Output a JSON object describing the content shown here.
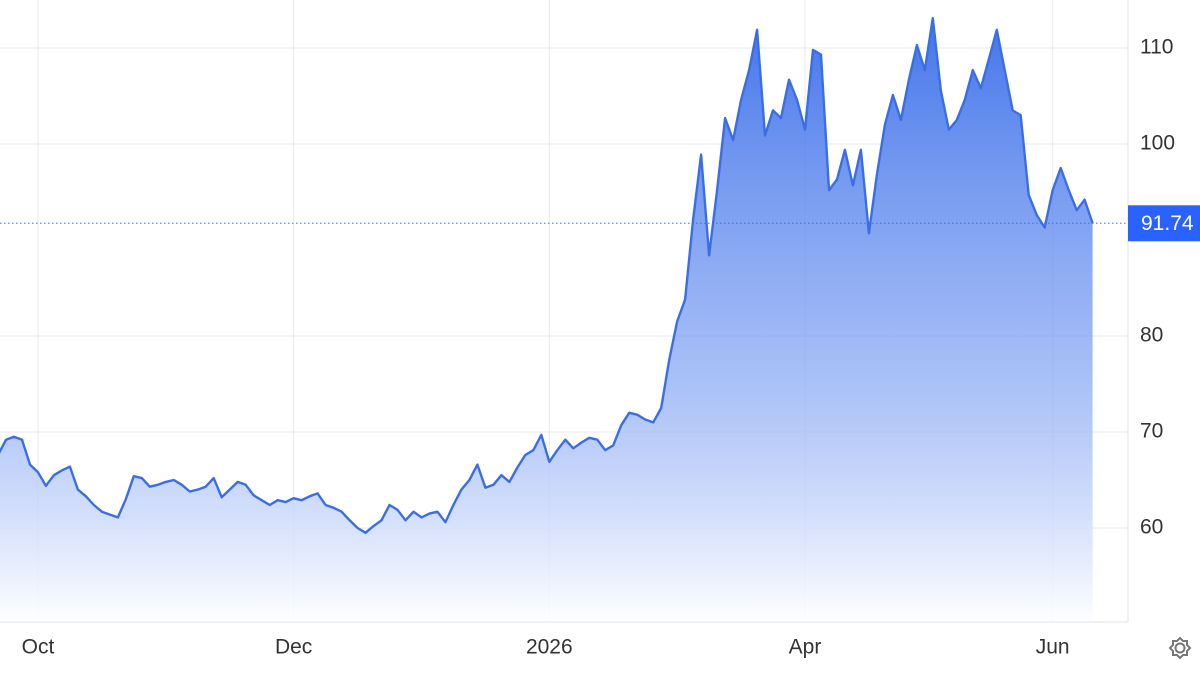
{
  "chart_data": {
    "type": "area",
    "categories": [
      null,
      null,
      null,
      null,
      null,
      "Oct",
      null,
      null,
      null,
      null,
      null,
      null,
      null,
      null,
      null,
      null,
      null,
      null,
      null,
      null,
      null,
      null,
      null,
      null,
      null,
      null,
      null,
      null,
      null,
      null,
      null,
      null,
      null,
      null,
      null,
      null,
      null,
      "Dec",
      null,
      null,
      null,
      null,
      null,
      null,
      null,
      null,
      null,
      null,
      null,
      null,
      null,
      null,
      null,
      null,
      null,
      null,
      null,
      null,
      null,
      null,
      null,
      null,
      null,
      null,
      null,
      null,
      null,
      null,
      null,
      "2026",
      null,
      null,
      null,
      null,
      null,
      null,
      null,
      null,
      null,
      null,
      null,
      null,
      null,
      null,
      null,
      null,
      null,
      null,
      null,
      null,
      null,
      null,
      null,
      null,
      null,
      null,
      null,
      null,
      null,
      null,
      null,
      "Apr",
      null,
      null,
      null,
      null,
      null,
      null,
      null,
      null,
      null,
      null,
      null,
      null,
      null,
      null,
      null,
      null,
      null,
      null,
      null,
      null,
      null,
      null,
      null,
      null,
      null,
      null,
      null,
      null,
      null,
      null,
      "Jun",
      null,
      null,
      null,
      null,
      null
    ],
    "series": [
      {
        "color": "#3a6ee8",
        "values": [
          67.6,
          69.2,
          69.5,
          69.2,
          66.6,
          65.8,
          64.4,
          65.5,
          66.0,
          66.4,
          64.0,
          63.3,
          62.4,
          61.7,
          61.4,
          61.1,
          63.0,
          65.4,
          65.2,
          64.3,
          64.5,
          64.8,
          65.0,
          64.5,
          63.8,
          64.0,
          64.3,
          65.2,
          63.2,
          64.0,
          64.8,
          64.5,
          63.4,
          62.9,
          62.4,
          62.9,
          62.7,
          63.1,
          62.9,
          63.3,
          63.6,
          62.4,
          62.1,
          61.7,
          60.8,
          60.0,
          59.5,
          60.2,
          60.8,
          62.4,
          61.9,
          60.8,
          61.7,
          61.1,
          61.5,
          61.7,
          60.6,
          62.4,
          64.0,
          65.0,
          66.6,
          64.2,
          64.5,
          65.5,
          64.8,
          66.3,
          67.6,
          68.1,
          69.7,
          66.9,
          68.1,
          69.2,
          68.3,
          68.9,
          69.4,
          69.2,
          68.1,
          68.6,
          70.7,
          72.0,
          71.8,
          71.3,
          71.0,
          72.5,
          77.5,
          81.5,
          83.8,
          92.1,
          98.9,
          88.4,
          95.2,
          102.7,
          100.4,
          104.6,
          107.7,
          111.9,
          100.9,
          103.5,
          102.7,
          106.7,
          104.6,
          101.5,
          109.8,
          109.3,
          95.2,
          96.3,
          99.4,
          95.7,
          99.4,
          90.7,
          96.8,
          102.0,
          105.1,
          102.5,
          106.7,
          110.3,
          107.7,
          113.1,
          105.6,
          101.5,
          102.5,
          104.6,
          107.7,
          105.8,
          108.8,
          111.9,
          107.7,
          103.5,
          103.0,
          94.7,
          92.6,
          91.3,
          95.2,
          97.5,
          95.2,
          93.1,
          94.2,
          91.74
        ]
      }
    ],
    "ylim": [
      50,
      115
    ],
    "yticks": [
      60,
      70,
      80,
      100,
      110
    ],
    "last_price": 91.74,
    "grid": true
  }
}
